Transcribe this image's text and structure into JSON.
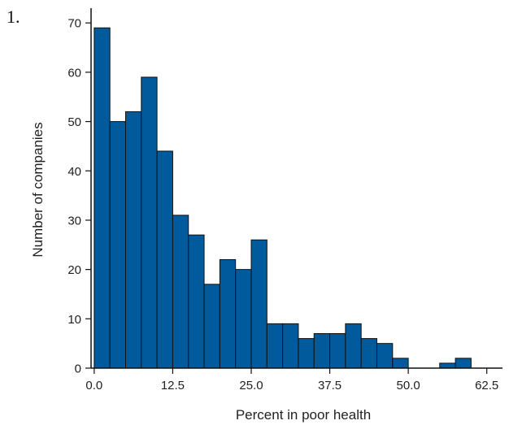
{
  "figure_number": "1.",
  "chart_data": {
    "type": "bar",
    "title": "",
    "xlabel": "Percent in poor health",
    "ylabel": "Number of companies",
    "xlim": [
      -0.5,
      65
    ],
    "ylim": [
      0,
      73
    ],
    "bin_width": 2.5,
    "bin_starts": [
      0,
      2.5,
      5,
      7.5,
      10,
      12.5,
      15,
      17.5,
      20,
      22.5,
      25,
      27.5,
      30,
      32.5,
      35,
      37.5,
      40,
      42.5,
      45,
      47.5,
      50,
      52.5,
      55,
      57.5
    ],
    "values": [
      69,
      50,
      52,
      59,
      44,
      31,
      27,
      17,
      22,
      20,
      26,
      9,
      9,
      6,
      7,
      7,
      9,
      6,
      5,
      2,
      0,
      0,
      1,
      2
    ],
    "x_ticks": [
      0,
      12.5,
      25,
      37.5,
      50,
      62.5
    ],
    "x_tick_labels": [
      "0.0",
      "12.5",
      "25.0",
      "37.5",
      "50.0",
      "62.5"
    ],
    "y_ticks": [
      0,
      10,
      20,
      30,
      40,
      50,
      60,
      70
    ],
    "y_tick_labels": [
      "0",
      "10",
      "20",
      "30",
      "40",
      "50",
      "60",
      "70"
    ],
    "grid": false,
    "bar_color": "#005a9c",
    "edge_color": "#111111"
  }
}
